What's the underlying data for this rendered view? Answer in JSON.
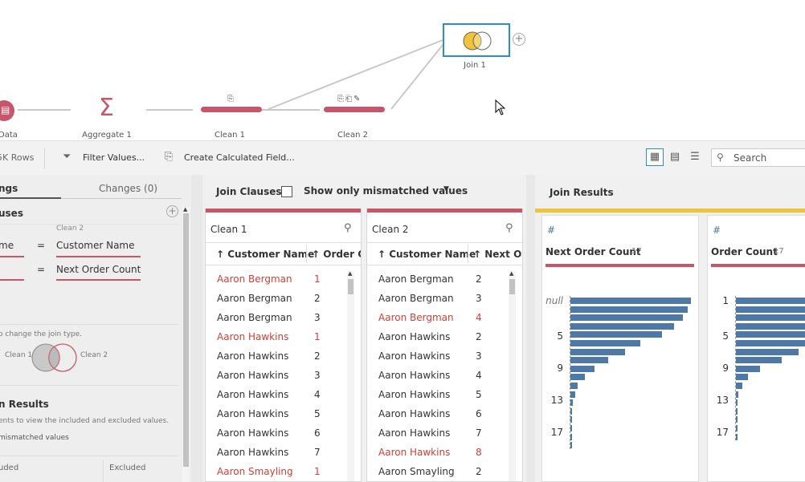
{
  "flow": {
    "nodes": {
      "data_label": "Data",
      "aggregate_label": "Aggregate 1",
      "clean1_label": "Clean 1",
      "clean2_label": "Clean 2",
      "join_label": "Join 1"
    }
  },
  "toolbar": {
    "rows_label": "5K Rows",
    "filter_label": "Filter Values...",
    "calc_label": "Create Calculated Field...",
    "search_placeholder": "Search"
  },
  "left_panel": {
    "tab_settings": "ngs",
    "tab_changes": "Changes (0)",
    "section_clauses": "uses",
    "clause_header_right": "Clean 2",
    "clauses": [
      {
        "left": "me",
        "op": "=",
        "right": "Customer Name"
      },
      {
        "left": "",
        "op": "=",
        "right": "Next Order Count"
      }
    ],
    "join_type_hint": "o change the join type.",
    "venn_left": "Clean 1",
    "venn_right": "Clean 2",
    "section_results": "n Results",
    "results_hint": "ents to view the included and excluded values.",
    "mismatch_label": "mismatched values",
    "included_label": "uded",
    "excluded_label": "Excluded"
  },
  "clauses_panel": {
    "title": "Join Clauses",
    "mismatch_toggle": "Show only mismatched values",
    "profiles": [
      {
        "title": "Clean 1",
        "col1": "Customer Name",
        "col2": "Order Co",
        "rows": [
          {
            "name": "Aaron Bergman",
            "num": "1",
            "mismatch": true
          },
          {
            "name": "Aaron Bergman",
            "num": "2",
            "mismatch": false
          },
          {
            "name": "Aaron Bergman",
            "num": "3",
            "mismatch": false
          },
          {
            "name": "Aaron Hawkins",
            "num": "1",
            "mismatch": true
          },
          {
            "name": "Aaron Hawkins",
            "num": "2",
            "mismatch": false
          },
          {
            "name": "Aaron Hawkins",
            "num": "3",
            "mismatch": false
          },
          {
            "name": "Aaron Hawkins",
            "num": "4",
            "mismatch": false
          },
          {
            "name": "Aaron Hawkins",
            "num": "5",
            "mismatch": false
          },
          {
            "name": "Aaron Hawkins",
            "num": "6",
            "mismatch": false
          },
          {
            "name": "Aaron Hawkins",
            "num": "7",
            "mismatch": false
          },
          {
            "name": "Aaron Smayling",
            "num": "1",
            "mismatch": true
          }
        ]
      },
      {
        "title": "Clean 2",
        "col1": "Customer Name",
        "col2": "Next Ord",
        "rows": [
          {
            "name": "Aaron Bergman",
            "num": "2",
            "mismatch": false
          },
          {
            "name": "Aaron Bergman",
            "num": "3",
            "mismatch": false
          },
          {
            "name": "Aaron Bergman",
            "num": "4",
            "mismatch": true
          },
          {
            "name": "Aaron Hawkins",
            "num": "2",
            "mismatch": false
          },
          {
            "name": "Aaron Hawkins",
            "num": "3",
            "mismatch": false
          },
          {
            "name": "Aaron Hawkins",
            "num": "4",
            "mismatch": false
          },
          {
            "name": "Aaron Hawkins",
            "num": "5",
            "mismatch": false
          },
          {
            "name": "Aaron Hawkins",
            "num": "6",
            "mismatch": false
          },
          {
            "name": "Aaron Hawkins",
            "num": "7",
            "mismatch": false
          },
          {
            "name": "Aaron Hawkins",
            "num": "8",
            "mismatch": true
          },
          {
            "name": "Aaron Smayling",
            "num": "2",
            "mismatch": false
          }
        ]
      }
    ]
  },
  "results_panel": {
    "title": "Join Results",
    "cards": [
      {
        "type_icon": "#",
        "field": "Next Order Count",
        "count": "17",
        "ticks": [
          "null",
          "5",
          "9",
          "13",
          "17"
        ],
        "bar_fractions": [
          1.0,
          0.97,
          0.93,
          0.86,
          0.76,
          0.58,
          0.45,
          0.31,
          0.2,
          0.12,
          0.06,
          0.04,
          0.02,
          0.01,
          0.01,
          0.01,
          0.01,
          0.01
        ]
      },
      {
        "type_icon": "#",
        "field": "Order Count",
        "count": "17",
        "ticks": [
          "1",
          "5",
          "9",
          "13",
          "17"
        ],
        "bar_fractions": [
          1.0,
          1.0,
          1.0,
          1.0,
          1.0,
          0.75,
          0.52,
          0.38,
          0.2,
          0.1,
          0.05,
          0.02,
          0.01,
          0.01,
          0.01,
          0.01,
          0.01
        ]
      }
    ]
  },
  "colors": {
    "accent_pink": "#c8566b",
    "accent_yellow": "#f0c43a",
    "bar_blue": "#4e79a7",
    "mismatch_red": "#d13e34",
    "selection_blue": "#2d8bd0"
  }
}
